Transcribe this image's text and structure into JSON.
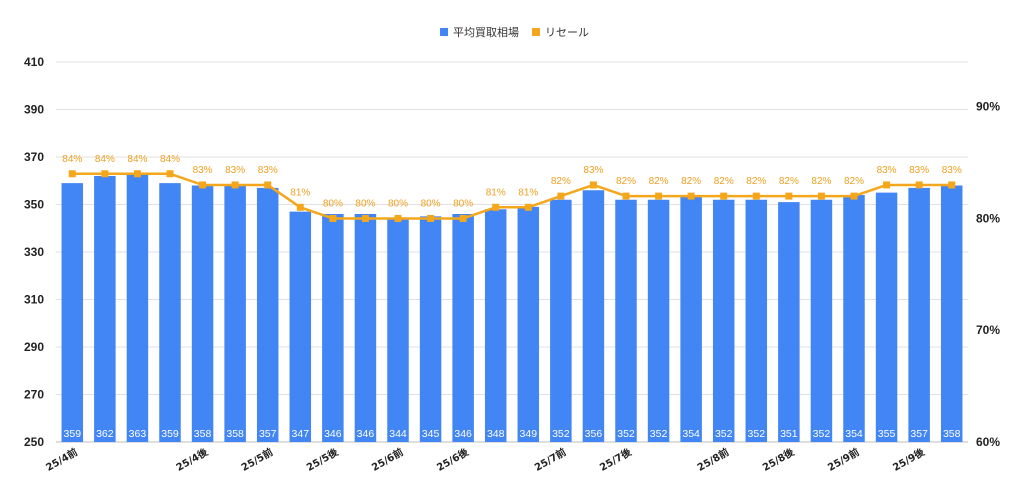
{
  "chart_data": {
    "type": "bar",
    "title": "",
    "categories": [
      "25/4前",
      "",
      "",
      "",
      "25/4後",
      "",
      "25/5前",
      "",
      "25/5後",
      "",
      "25/6前",
      "",
      "25/6後",
      "",
      "",
      "25/7前",
      "",
      "25/7後",
      "",
      "",
      "25/8前",
      "",
      "25/8後",
      "",
      "25/9前",
      "",
      "25/9後",
      ""
    ],
    "series": [
      {
        "name": "平均買取相場",
        "type": "bar",
        "axis": "left",
        "values": [
          359,
          362,
          363,
          359,
          358,
          358,
          357,
          347,
          346,
          346,
          344,
          345,
          346,
          348,
          349,
          352,
          356,
          352,
          352,
          354,
          352,
          352,
          351,
          352,
          354,
          355,
          357,
          358
        ]
      },
      {
        "name": "リセール",
        "type": "line",
        "axis": "right",
        "values": [
          84,
          84,
          84,
          84,
          83,
          83,
          83,
          81,
          80,
          80,
          80,
          80,
          80,
          81,
          81,
          82,
          83,
          82,
          82,
          82,
          82,
          82,
          82,
          82,
          82,
          83,
          83,
          83
        ],
        "labels": [
          "84%",
          "84%",
          "84%",
          "84%",
          "83%",
          "83%",
          "83%",
          "81%",
          "80%",
          "80%",
          "80%",
          "80%",
          "80%",
          "81%",
          "81%",
          "82%",
          "83%",
          "82%",
          "82%",
          "82%",
          "82%",
          "82%",
          "82%",
          "82%",
          "82%",
          "83%",
          "83%",
          "83%"
        ]
      }
    ],
    "y_left": {
      "ylim": [
        250,
        410
      ],
      "ticks": [
        "250",
        "270",
        "290",
        "310",
        "330",
        "350",
        "370",
        "390",
        "410"
      ]
    },
    "y_right": {
      "ylim": [
        60,
        94
      ],
      "ticks": [
        "60%",
        "70%",
        "80%",
        "90%"
      ],
      "tick_values": [
        60,
        70,
        80,
        90
      ]
    },
    "grid": true,
    "legend_position": "top-center",
    "colors": {
      "bar": "#4285f4",
      "line": "#f4a71d",
      "grid": "#e0e0e0"
    }
  }
}
